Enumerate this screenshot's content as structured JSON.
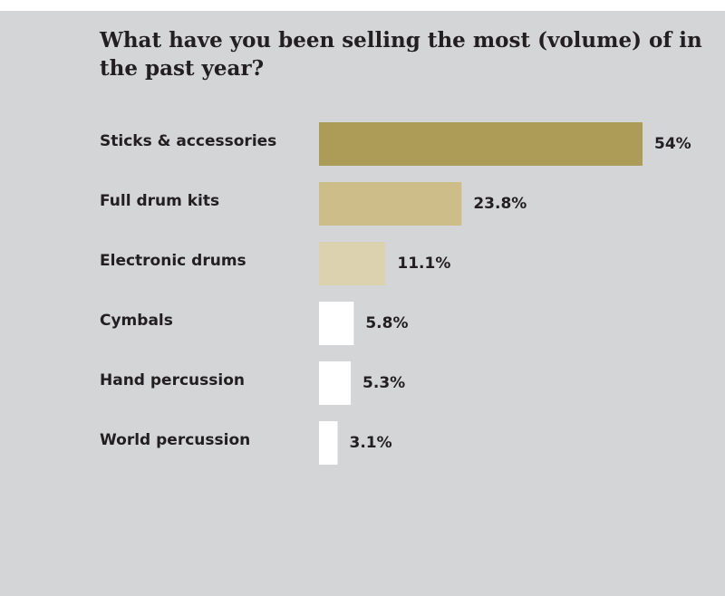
{
  "chart_data": {
    "type": "bar",
    "orientation": "horizontal",
    "title": "What have you been selling the most (volume) of in the past year?",
    "categories": [
      "Sticks & accessories",
      "Full drum kits",
      "Electronic drums",
      "Cymbals",
      "Hand percussion",
      "World percussion"
    ],
    "values": [
      54,
      23.8,
      11.1,
      5.8,
      5.3,
      3.1
    ],
    "value_labels": [
      "54%",
      "23.8%",
      "11.1%",
      "5.8%",
      "5.3%",
      "3.1%"
    ],
    "xlim": [
      0,
      54
    ],
    "grid": false,
    "legend": "none",
    "colors": [
      "#ad9b58",
      "#cdbd88",
      "#ddd2b0",
      "#ffffff",
      "#ffffff",
      "#ffffff"
    ]
  }
}
